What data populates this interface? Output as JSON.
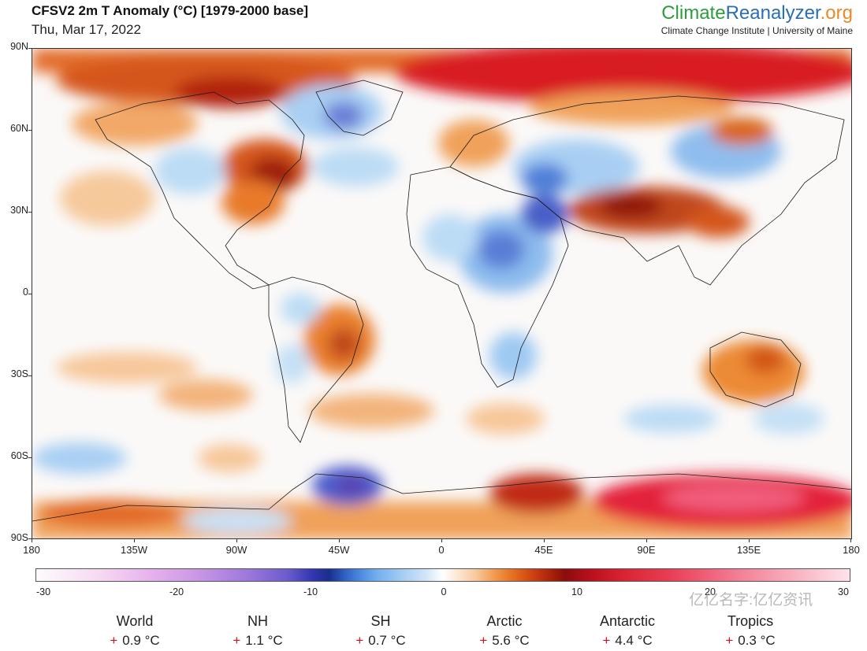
{
  "header": {
    "title": "CFSV2 2m T Anomaly (°C) [1979-2000 base]",
    "date": "Thu, Mar 17, 2022",
    "brand_part1": "Climate",
    "brand_part2": "Reanalyzer",
    "brand_part3": ".org",
    "institute": "Climate Change Institute | University of Maine"
  },
  "map": {
    "latitude_labels": [
      "90N",
      "60N",
      "30N",
      "0",
      "30S",
      "60S",
      "90S"
    ],
    "longitude_labels": [
      "180",
      "135W",
      "90W",
      "45W",
      "0",
      "45E",
      "90E",
      "135E",
      "180"
    ],
    "colors": {
      "warm_strong": "#c4161c",
      "warm_medium": "#e8742a",
      "warm_light": "#f7c79a",
      "neutral": "#ffffff",
      "cool_light": "#bcdcf5",
      "cool_medium": "#5f9de2",
      "cool_strong": "#3c3fb0",
      "hot_extreme": "#e83450"
    }
  },
  "colorbar": {
    "ticks": [
      "-30",
      "-20",
      "-10",
      "0",
      "10",
      "20",
      "30"
    ],
    "min": -30,
    "max": 30
  },
  "stats": [
    {
      "name": "World",
      "value": "0.9 °C"
    },
    {
      "name": "NH",
      "value": "1.1 °C"
    },
    {
      "name": "SH",
      "value": "0.7 °C"
    },
    {
      "name": "Arctic",
      "value": "5.6 °C"
    },
    {
      "name": "Antarctic",
      "value": "4.4 °C"
    },
    {
      "name": "Tropics",
      "value": "0.3 °C"
    }
  ],
  "stat_sign": "+",
  "watermark": "亿亿名字:亿亿资讯"
}
